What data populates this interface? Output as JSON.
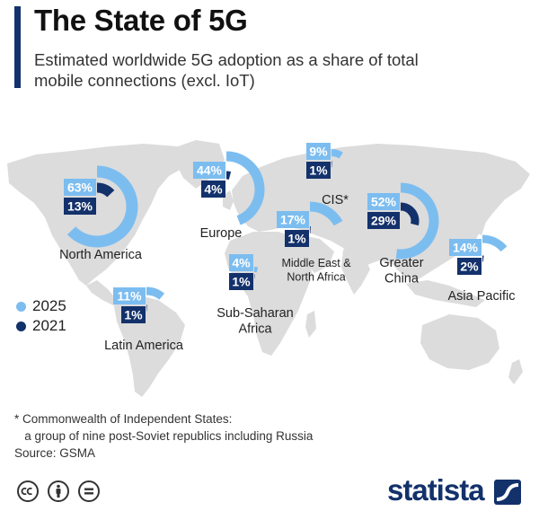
{
  "header": {
    "title": "The State of 5G",
    "subtitle_line1": "Estimated worldwide 5G adoption as a share of total",
    "subtitle_line2": "mobile connections (excl. IoT)"
  },
  "colors": {
    "light": "#7cbdf0",
    "dark": "#13316b",
    "map": "#dcdcdc",
    "accent": "#13316b"
  },
  "legend": [
    {
      "label": "2025",
      "color": "#7cbdf0"
    },
    {
      "label": "2021",
      "color": "#13316b"
    }
  ],
  "chart_data": {
    "type": "pie",
    "series_names": [
      "2025",
      "2021"
    ],
    "regions": [
      {
        "name_lines": [
          "North America"
        ],
        "v2025": 63,
        "v2021": 13,
        "label2025": "63%",
        "label2021": "13%"
      },
      {
        "name_lines": [
          "Europe"
        ],
        "v2025": 44,
        "v2021": 4,
        "label2025": "44%",
        "label2021": "4%"
      },
      {
        "name_lines": [
          "CIS*"
        ],
        "v2025": 9,
        "v2021": 1,
        "label2025": "9%",
        "label2021": "1%"
      },
      {
        "name_lines": [
          "Greater",
          "China"
        ],
        "v2025": 52,
        "v2021": 29,
        "label2025": "52%",
        "label2021": "29%"
      },
      {
        "name_lines": [
          "Middle East &",
          "North Africa"
        ],
        "v2025": 17,
        "v2021": 1,
        "label2025": "17%",
        "label2021": "1%"
      },
      {
        "name_lines": [
          "Sub-Saharan",
          "Africa"
        ],
        "v2025": 4,
        "v2021": 1,
        "label2025": "4%",
        "label2021": "1%"
      },
      {
        "name_lines": [
          "Latin America"
        ],
        "v2025": 11,
        "v2021": 1,
        "label2025": "11%",
        "label2021": "1%"
      },
      {
        "name_lines": [
          "Asia Pacific"
        ],
        "v2025": 14,
        "v2021": 2,
        "label2025": "14%",
        "label2021": "2%"
      }
    ]
  },
  "footnote": {
    "line1": "* Commonwealth of Independent States:",
    "line2": "   a group of nine post-Soviet republics including Russia",
    "line3": "Source: GSMA"
  },
  "footer": {
    "brand": "statista",
    "icons": [
      "creative-commons-icon",
      "attribution-icon",
      "no-derivatives-icon"
    ]
  }
}
